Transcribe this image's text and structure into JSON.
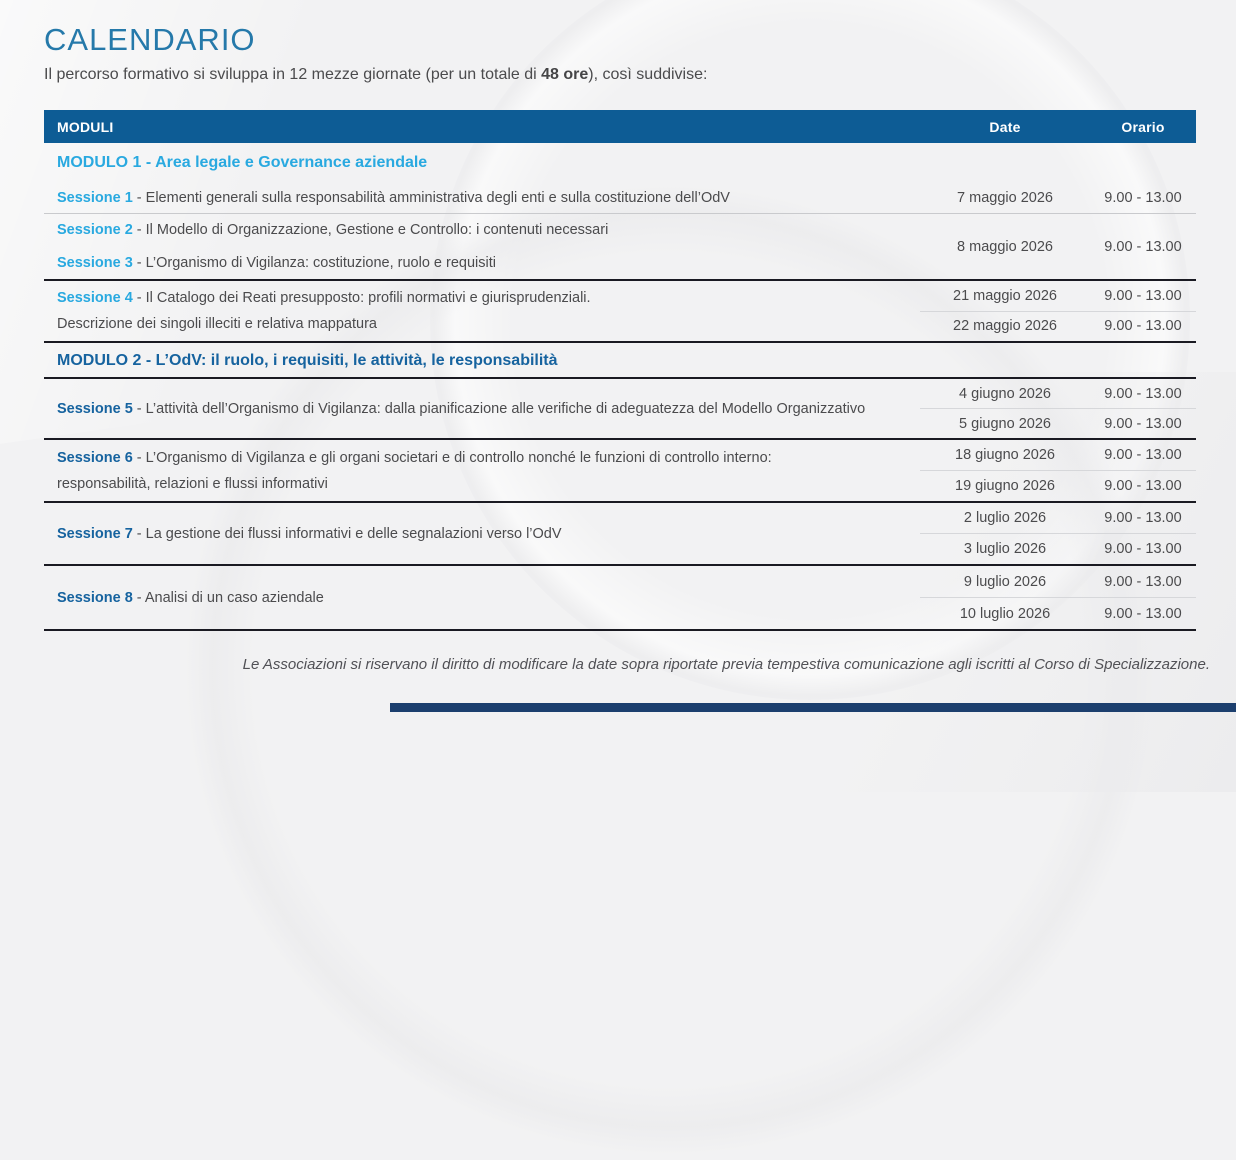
{
  "page": {
    "title": "CALENDARIO",
    "intro": {
      "prefix": "Il percorso formativo si sviluppa in 12 mezze giornate (per un totale di ",
      "bold": "48 ore",
      "suffix": "), così suddivise:"
    },
    "footer_note": "Le Associazioni si riservano il diritto di modificare la date sopra riportate previa tempestiva comunicazione agli iscritti al Corso di Specializzazione."
  },
  "table": {
    "headers": {
      "moduli": "MODULI",
      "date": "Date",
      "orario": "Orario"
    },
    "modules": [
      {
        "title": "MODULO 1 - Area legale e Governance aziendale",
        "groups": [
          {
            "sessions": [
              {
                "label": "Sessione 1",
                "text": "- Elementi generali sulla responsabilità amministrativa degli enti e sulla costituzione dell’OdV"
              }
            ],
            "schedule": [
              {
                "date": "7 maggio 2026",
                "time": "9.00 - 13.00"
              }
            ]
          },
          {
            "sessions": [
              {
                "label": "Sessione 2",
                "text": "- Il Modello di Organizzazione, Gestione e Controllo: i contenuti necessari"
              },
              {
                "label": "Sessione 3",
                "text": "- L’Organismo di Vigilanza: costituzione, ruolo e requisiti"
              }
            ],
            "schedule": [
              {
                "date": "8 maggio 2026",
                "time": "9.00 - 13.00"
              }
            ]
          },
          {
            "sessions": [
              {
                "label": "Sessione 4",
                "text": "- Il Catalogo dei Reati presupposto: profili normativi e giurisprudenziali.",
                "text2": "Descrizione dei singoli illeciti e relativa mappatura"
              }
            ],
            "schedule": [
              {
                "date": "21 maggio 2026",
                "time": "9.00 - 13.00"
              },
              {
                "date": "22 maggio 2026",
                "time": "9.00 - 13.00"
              }
            ]
          }
        ]
      },
      {
        "title": "MODULO 2 - L’OdV: il ruolo, i requisiti, le attività, le responsabilità",
        "groups": [
          {
            "sessions": [
              {
                "label": "Sessione 5",
                "text": "- L’attività dell’Organismo di Vigilanza: dalla pianificazione alle verifiche di adeguatezza del Modello Organizzativo"
              }
            ],
            "schedule": [
              {
                "date": "4 giugno 2026",
                "time": "9.00 - 13.00"
              },
              {
                "date": "5 giugno 2026",
                "time": "9.00 - 13.00"
              }
            ]
          },
          {
            "sessions": [
              {
                "label": "Sessione 6",
                "text": "- L’Organismo di Vigilanza e gli organi societari e di controllo nonché le funzioni di controllo interno:",
                "text2": "responsabilità, relazioni e flussi informativi"
              }
            ],
            "schedule": [
              {
                "date": "18 giugno 2026",
                "time": "9.00 - 13.00"
              },
              {
                "date": "19 giugno 2026",
                "time": "9.00 - 13.00"
              }
            ]
          },
          {
            "sessions": [
              {
                "label": "Sessione 7",
                "text": "- La gestione dei flussi informativi e delle segnalazioni verso l’OdV"
              }
            ],
            "schedule": [
              {
                "date": "2 luglio 2026",
                "time": "9.00 - 13.00"
              },
              {
                "date": "3 luglio 2026",
                "time": "9.00 - 13.00"
              }
            ]
          },
          {
            "sessions": [
              {
                "label": "Sessione 8",
                "text": "- Analisi di un caso aziendale"
              }
            ],
            "schedule": [
              {
                "date": "9 luglio 2026",
                "time": "9.00 - 13.00"
              },
              {
                "date": "10 luglio 2026",
                "time": "9.00 - 13.00"
              }
            ]
          }
        ]
      }
    ]
  },
  "colors": {
    "accent_cyan": "#29a9e0",
    "accent_blue": "#16639f",
    "table_header_bg": "#0d5c95",
    "title_color": "#2579aa",
    "footer_bar": "#1c3f6e"
  }
}
